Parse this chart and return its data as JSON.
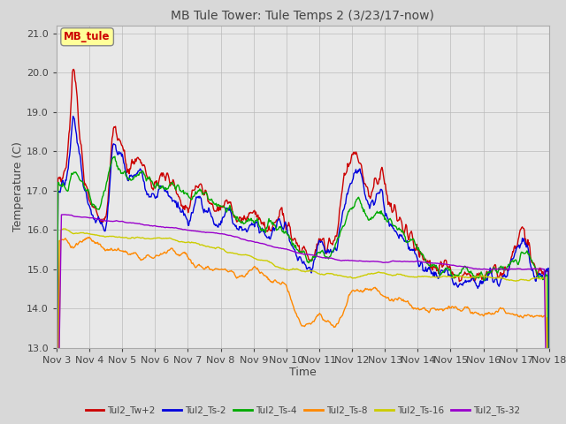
{
  "title": "MB Tule Tower: Tule Temps 2 (3/23/17-now)",
  "xlabel": "Time",
  "ylabel": "Temperature (C)",
  "ylim": [
    13.0,
    21.2
  ],
  "yticks": [
    13.0,
    14.0,
    15.0,
    16.0,
    17.0,
    18.0,
    19.0,
    20.0,
    21.0
  ],
  "background_color": "#d8d8d8",
  "plot_bg_color": "#e8e8e8",
  "legend_label": "MB_tule",
  "legend_text_color": "#cc0000",
  "legend_box_color": "#ffff99",
  "series_colors": [
    "#cc0000",
    "#0000dd",
    "#00aa00",
    "#ff8800",
    "#cccc00",
    "#9900cc"
  ],
  "series_labels": [
    "Tul2_Tw+2",
    "Tul2_Ts-2",
    "Tul2_Ts-4",
    "Tul2_Ts-8",
    "Tul2_Ts-16",
    "Tul2_Ts-32"
  ],
  "xtick_labels": [
    "Nov 3",
    "Nov 4",
    "Nov 5",
    "Nov 6",
    "Nov 7",
    "Nov 8",
    "Nov 9",
    "Nov 10",
    "Nov 11",
    "Nov 12",
    "Nov 13",
    "Nov 14",
    "Nov 15",
    "Nov 16",
    "Nov 17",
    "Nov 18"
  ],
  "n_days": 15,
  "pts_per_day": 48
}
